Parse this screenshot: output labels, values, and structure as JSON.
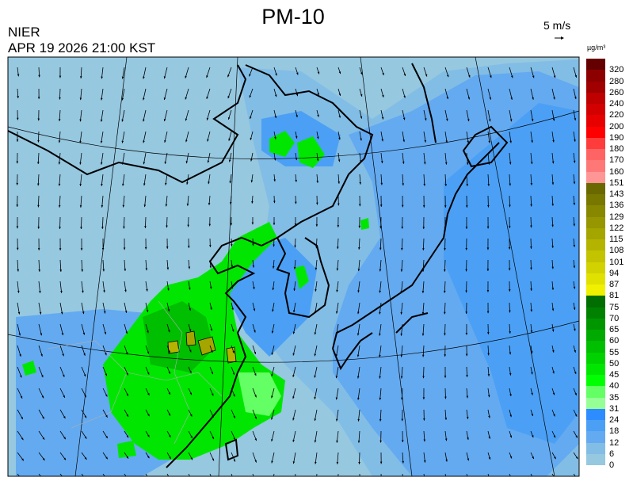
{
  "header": {
    "title": "PM-10",
    "organization": "NIER",
    "datetime": "APR 19 2026 21:00 KST",
    "wind_scale_label": "5 m/s"
  },
  "legend": {
    "unit": "µg/m³",
    "bins": [
      {
        "label": "0",
        "color": "#96c8e0"
      },
      {
        "label": "6",
        "color": "#82bde6"
      },
      {
        "label": "12",
        "color": "#64aaf0"
      },
      {
        "label": "18",
        "color": "#4ba0f5"
      },
      {
        "label": "24",
        "color": "#2d8cff"
      },
      {
        "label": "31",
        "color": "#96ff96"
      },
      {
        "label": "35",
        "color": "#64ff64"
      },
      {
        "label": "40",
        "color": "#00ff00"
      },
      {
        "label": "45",
        "color": "#00e600"
      },
      {
        "label": "50",
        "color": "#00d200"
      },
      {
        "label": "55",
        "color": "#00be00"
      },
      {
        "label": "60",
        "color": "#00aa00"
      },
      {
        "label": "65",
        "color": "#009600"
      },
      {
        "label": "70",
        "color": "#008200"
      },
      {
        "label": "75",
        "color": "#006e00"
      },
      {
        "label": "81",
        "color": "#f0f000"
      },
      {
        "label": "87",
        "color": "#e1e100"
      },
      {
        "label": "94",
        "color": "#d2d200"
      },
      {
        "label": "101",
        "color": "#c3c300"
      },
      {
        "label": "108",
        "color": "#b4b400"
      },
      {
        "label": "115",
        "color": "#a5a500"
      },
      {
        "label": "122",
        "color": "#969600"
      },
      {
        "label": "129",
        "color": "#878700"
      },
      {
        "label": "136",
        "color": "#787800"
      },
      {
        "label": "143",
        "color": "#696900"
      },
      {
        "label": "151",
        "color": "#ff9696"
      },
      {
        "label": "160",
        "color": "#ff7878"
      },
      {
        "label": "170",
        "color": "#ff6464"
      },
      {
        "label": "180",
        "color": "#ff3c3c"
      },
      {
        "label": "190",
        "color": "#ff0000"
      },
      {
        "label": "200",
        "color": "#e60000"
      },
      {
        "label": "220",
        "color": "#d20000"
      },
      {
        "label": "240",
        "color": "#be0000"
      },
      {
        "label": "260",
        "color": "#a00000"
      },
      {
        "label": "280",
        "color": "#8c0000"
      },
      {
        "label": "320",
        "color": "#640000"
      }
    ]
  },
  "map": {
    "region": "East Asia",
    "background_color": "#96c8e0",
    "coastline_color": "#000000",
    "wind_arrow_icon": "arrow-icon"
  }
}
